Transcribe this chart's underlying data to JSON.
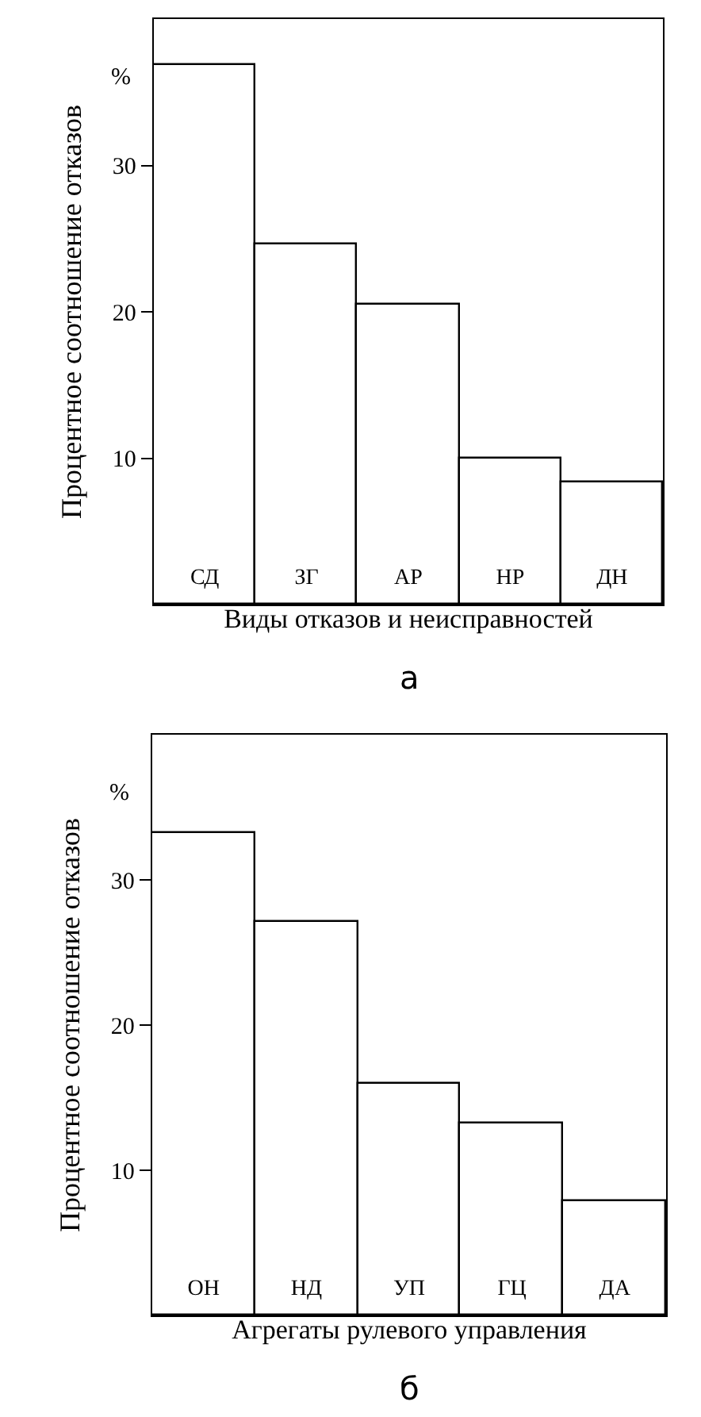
{
  "chart_data": [
    {
      "type": "bar",
      "xlabel": "Виды отказов и неисправностей",
      "ylabel": "Процентное соотношение отказов",
      "categories": [
        "СД",
        "ЗГ",
        "АР",
        "НР",
        "ДН"
      ],
      "values": [
        36.9,
        24.6,
        20.5,
        10,
        8.3
      ],
      "color": "#ffffff",
      "ylim": [
        0,
        40
      ],
      "yticks": [
        10,
        20,
        30
      ],
      "annotations": [
        "%",
        "а"
      ]
    },
    {
      "type": "bar",
      "xlabel": "Агрегаты рулевого управления",
      "ylabel": "Процентное соотношение отказов",
      "categories": [
        "ОН",
        "НД",
        "УП",
        "ГЦ",
        "ДА"
      ],
      "values": [
        33.2,
        27.1,
        16.0,
        13.2,
        7.9
      ],
      "color": "#ffffff",
      "ylim": [
        0,
        40
      ],
      "yticks": [
        10,
        20,
        30
      ],
      "annotations": [
        "%",
        "б"
      ]
    }
  ]
}
